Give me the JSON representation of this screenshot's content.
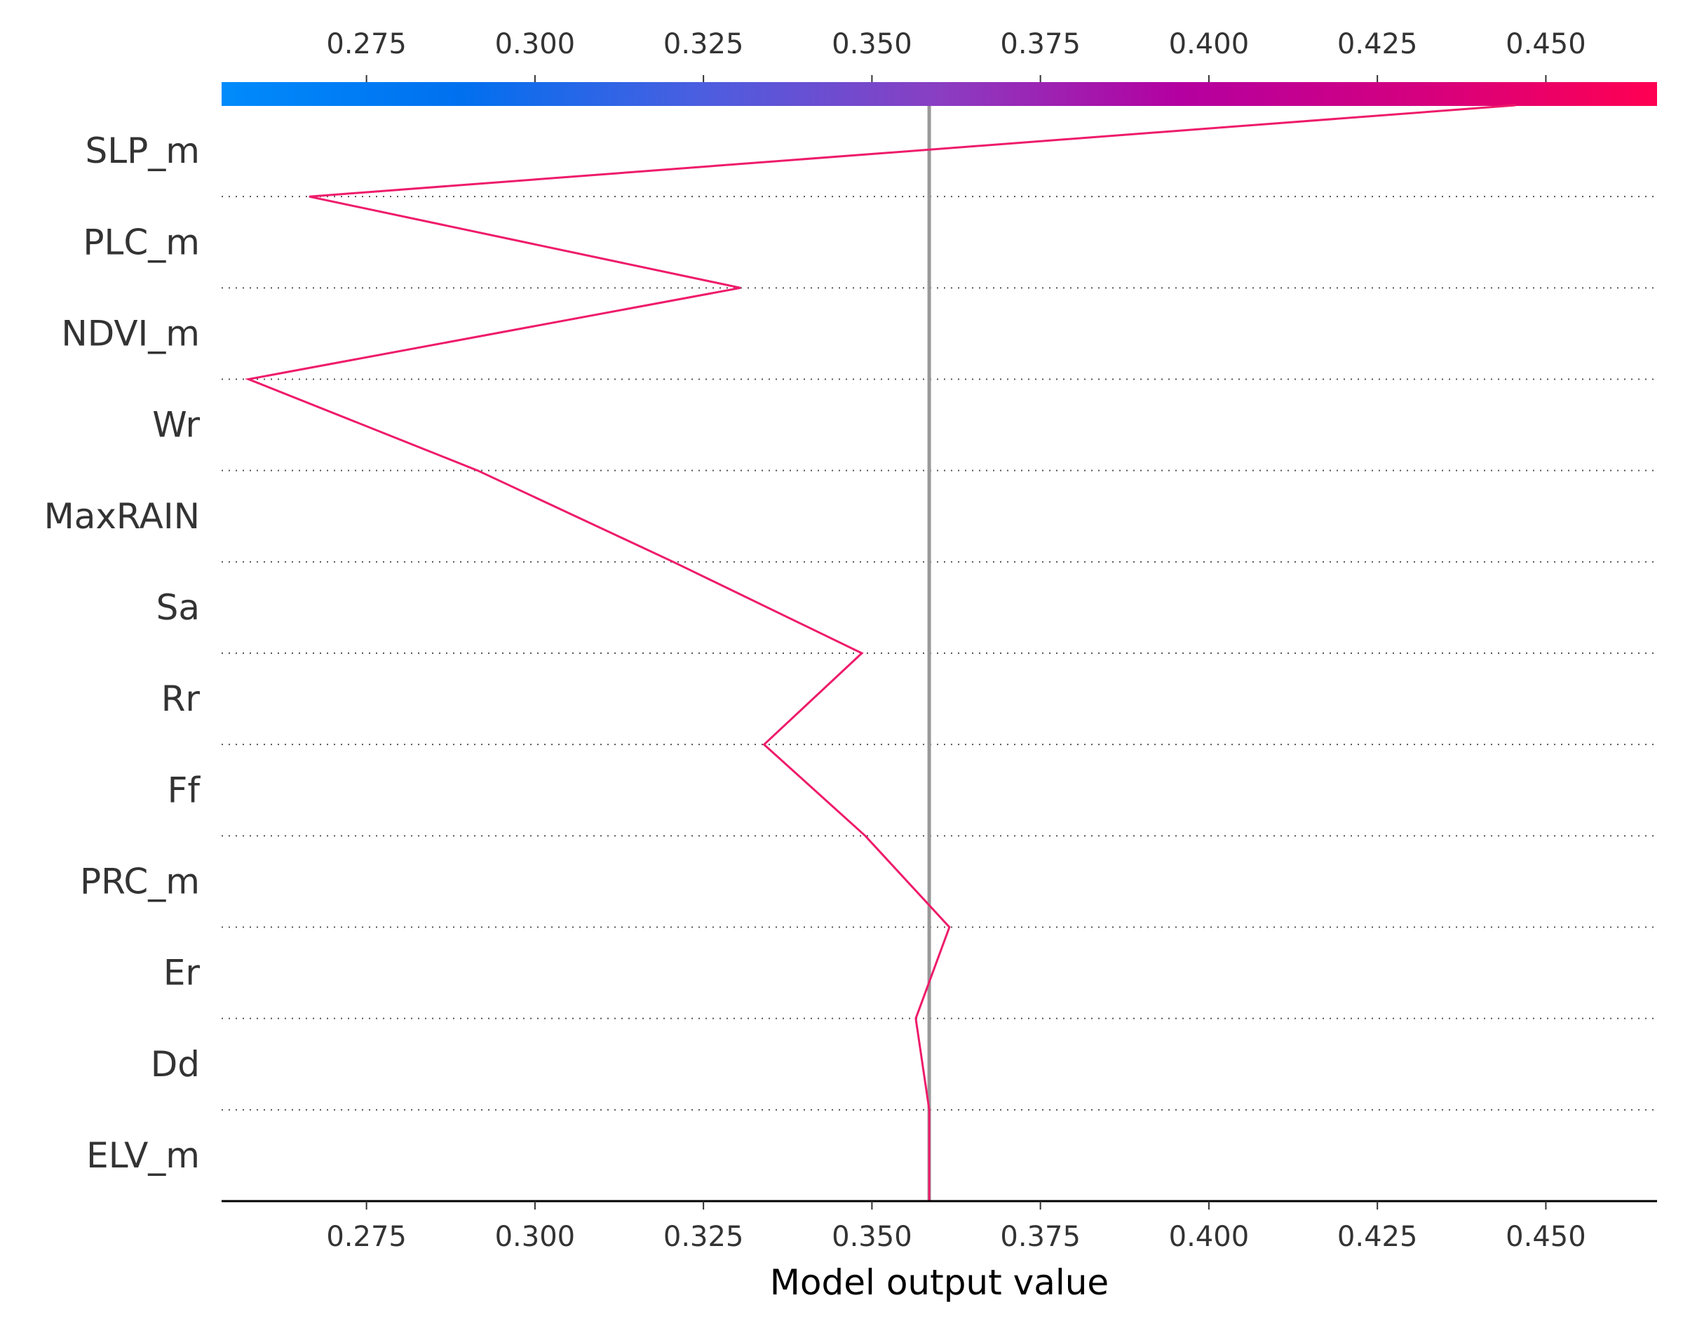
{
  "chart_data": {
    "type": "line",
    "subtype": "shap-decision-plot",
    "xlabel": "Model output value",
    "xlim": [
      0.2535,
      0.4665
    ],
    "x_ticks": [
      0.275,
      0.3,
      0.325,
      0.35,
      0.375,
      0.4,
      0.425,
      0.45
    ],
    "x_tick_labels": [
      "0.275",
      "0.300",
      "0.325",
      "0.350",
      "0.375",
      "0.400",
      "0.425",
      "0.450"
    ],
    "base_value": 0.3585,
    "features": [
      "SLP_m",
      "PLC_m",
      "NDVI_m",
      "Wr",
      "MaxRAIN",
      "Sa",
      "Rr",
      "Ff",
      "PRC_m",
      "Er",
      "Dd",
      "ELV_m"
    ],
    "path": [
      0.4455,
      0.2665,
      0.3305,
      0.2575,
      0.2915,
      0.3205,
      0.3485,
      0.334,
      0.349,
      0.3615,
      0.3565,
      0.3585
    ],
    "grid": "dotted-horizontal",
    "colorbar": {
      "position": "top",
      "colormap": [
        "#008bfb",
        "#0070ef",
        "#4b5ee0",
        "#8a3ec2",
        "#b400a0",
        "#d4007f",
        "#ff0052"
      ]
    },
    "colors": {
      "line": "#ee1b6a",
      "base_line": "#999999",
      "grid": "#555555",
      "axis": "#000000"
    }
  }
}
